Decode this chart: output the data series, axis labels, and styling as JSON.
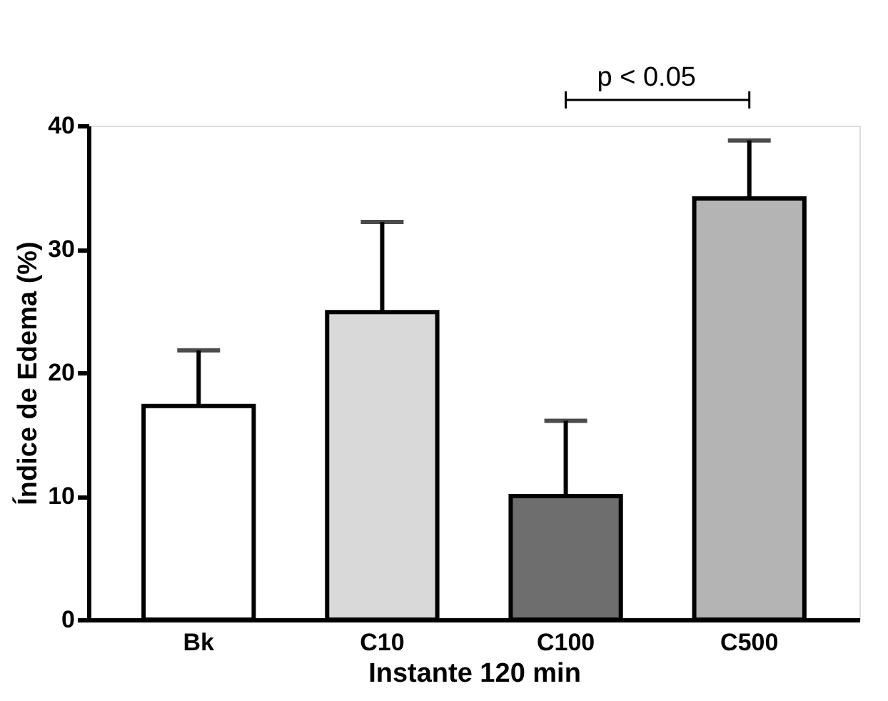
{
  "chart_data": {
    "type": "bar",
    "xlabel": "Instante 120 min",
    "ylabel": "Índice de Edema  (%)",
    "categories": [
      "Bk",
      "C10",
      "C100",
      "C500"
    ],
    "values": [
      17.3,
      24.9,
      10.0,
      34.1
    ],
    "colors": [
      "#ffffff",
      "#d9d9d9",
      "#6e6e6e",
      "#b4b4b4"
    ],
    "errors": [
      [
        17.3,
        21.8
      ],
      [
        24.9,
        32.2
      ],
      [
        10.0,
        16.1
      ],
      [
        34.1,
        38.8
      ]
    ],
    "ylim": [
      0,
      40
    ],
    "yticks": [
      0,
      10,
      20,
      30,
      40
    ],
    "grid": false,
    "annotations": [
      "p < 0.05"
    ]
  }
}
